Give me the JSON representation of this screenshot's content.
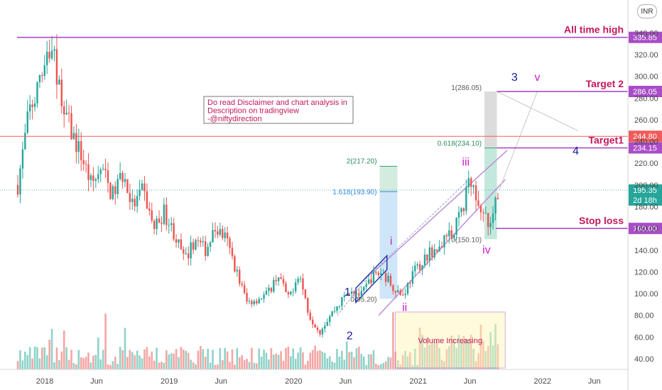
{
  "currency": "INR",
  "chart_data": {
    "type": "candlestick",
    "ylim": [
      20,
      355
    ],
    "y_ticks": [
      40,
      60,
      80,
      100,
      120,
      140,
      160,
      180,
      200,
      220,
      240,
      260,
      280,
      300,
      320,
      340
    ],
    "y_tick_labels": [
      "40.00",
      "60.00",
      "80.00",
      "100.00",
      "120.00",
      "140.00",
      "160.00",
      "180.00",
      "200.00",
      "220.00",
      "240.00",
      "260.00",
      "280.00",
      "300.00",
      "320.00",
      "340.00"
    ],
    "x_ticks": [
      {
        "label": "2018",
        "month": 0
      },
      {
        "label": "Jun",
        "month": 5
      },
      {
        "label": "2019",
        "month": 12
      },
      {
        "label": "Jun",
        "month": 17
      },
      {
        "label": "2020",
        "month": 24
      },
      {
        "label": "Jun",
        "month": 29
      },
      {
        "label": "2021",
        "month": 36
      },
      {
        "label": "Jun",
        "month": 41
      },
      {
        "label": "2022",
        "month": 48
      },
      {
        "label": "Jun",
        "month": 53
      }
    ],
    "price_path": [
      {
        "month": -2.6,
        "price": 200
      },
      {
        "month": -1.5,
        "price": 268
      },
      {
        "month": -0.5,
        "price": 290
      },
      {
        "month": 0.3,
        "price": 322
      },
      {
        "month": 1.0,
        "price": 310
      },
      {
        "month": 1.6,
        "price": 280
      },
      {
        "month": 2.5,
        "price": 250
      },
      {
        "month": 3.5,
        "price": 228
      },
      {
        "month": 4.5,
        "price": 200
      },
      {
        "month": 5.5,
        "price": 215
      },
      {
        "month": 6.5,
        "price": 190
      },
      {
        "month": 7.5,
        "price": 210
      },
      {
        "month": 8.5,
        "price": 180
      },
      {
        "month": 9.5,
        "price": 195
      },
      {
        "month": 10.5,
        "price": 160
      },
      {
        "month": 11.5,
        "price": 175
      },
      {
        "month": 12.5,
        "price": 155
      },
      {
        "month": 13.5,
        "price": 130
      },
      {
        "month": 14.5,
        "price": 150
      },
      {
        "month": 15.5,
        "price": 140
      },
      {
        "month": 16.5,
        "price": 160
      },
      {
        "month": 17.5,
        "price": 150
      },
      {
        "month": 18.5,
        "price": 120
      },
      {
        "month": 19.5,
        "price": 92
      },
      {
        "month": 20.5,
        "price": 95
      },
      {
        "month": 21.5,
        "price": 100
      },
      {
        "month": 22.5,
        "price": 118
      },
      {
        "month": 23.5,
        "price": 95
      },
      {
        "month": 24.5,
        "price": 120
      },
      {
        "month": 25.5,
        "price": 80
      },
      {
        "month": 26.5,
        "price": 65
      },
      {
        "month": 27.5,
        "price": 80
      },
      {
        "month": 28.5,
        "price": 92
      },
      {
        "month": 29.5,
        "price": 105
      },
      {
        "month": 30.5,
        "price": 98
      },
      {
        "month": 31.5,
        "price": 115
      },
      {
        "month": 32.5,
        "price": 120
      },
      {
        "month": 33.5,
        "price": 108
      },
      {
        "month": 34.5,
        "price": 98
      },
      {
        "month": 35.5,
        "price": 118
      },
      {
        "month": 36.5,
        "price": 132
      },
      {
        "month": 37.5,
        "price": 140
      },
      {
        "month": 38.5,
        "price": 148
      },
      {
        "month": 39.5,
        "price": 160
      },
      {
        "month": 40.5,
        "price": 185
      },
      {
        "month": 40.9,
        "price": 205
      },
      {
        "month": 41.6,
        "price": 190
      },
      {
        "month": 42.3,
        "price": 175
      },
      {
        "month": 42.8,
        "price": 160
      },
      {
        "month": 43.3,
        "price": 172
      },
      {
        "month": 43.7,
        "price": 195
      }
    ],
    "volume_ylim": [
      0,
      120
    ],
    "levels": [
      {
        "price": 335.85,
        "label": "All time high",
        "badge": "335.85",
        "color": "#a94cc7"
      },
      {
        "price": 286.05,
        "label": "Target 2",
        "badge": "286.05",
        "color": "#a94cc7"
      },
      {
        "price": 244.8,
        "label": "",
        "badge": "244.80",
        "color": "#f15b5b"
      },
      {
        "price": 234.15,
        "label": "Target1",
        "badge": "234.15",
        "color": "#a94cc7"
      },
      {
        "price": 160.0,
        "label": "Stop loss",
        "badge": "160.00",
        "color": "#a94cc7"
      }
    ],
    "current": {
      "price": 195.35,
      "badge": "195.35",
      "sub": "2d 18h"
    },
    "fib_upper": {
      "labels": [
        "2(217.20)",
        "1.618(193.90)",
        "0(95.20)"
      ],
      "prices": [
        217.2,
        193.9,
        95.2
      ]
    },
    "fib_lower": {
      "labels": [
        "1(286.05)",
        "0.618(234.10)",
        "0(150.10)"
      ],
      "prices": [
        286.05,
        234.1,
        150.1
      ]
    },
    "wave_labels": [
      {
        "text": "1",
        "month": 29.2,
        "price": 98,
        "color": "#1a1aa6"
      },
      {
        "text": "2",
        "month": 29.4,
        "price": 58,
        "color": "#1a1aa6"
      },
      {
        "text": "i",
        "month": 33.4,
        "price": 145,
        "color": "#c81ec8"
      },
      {
        "text": "ii",
        "month": 34.7,
        "price": 84,
        "color": "#c81ec8"
      },
      {
        "text": "iii",
        "month": 40.6,
        "price": 218,
        "color": "#c81ec8"
      },
      {
        "text": "iv",
        "month": 42.6,
        "price": 137,
        "color": "#c81ec8"
      },
      {
        "text": "3",
        "month": 45.3,
        "price": 296,
        "color": "#1a1aa6"
      },
      {
        "text": "v",
        "month": 47.5,
        "price": 296,
        "color": "#c81ec8"
      },
      {
        "text": "4",
        "month": 51.2,
        "price": 228,
        "color": "#1a1aa6"
      }
    ],
    "annotation": {
      "lines": [
        "Do read Disclaimer and chart analysis in",
        "Description on tradingview",
        "-@niftydirection"
      ]
    },
    "volume_note": "Volume Increasing"
  }
}
